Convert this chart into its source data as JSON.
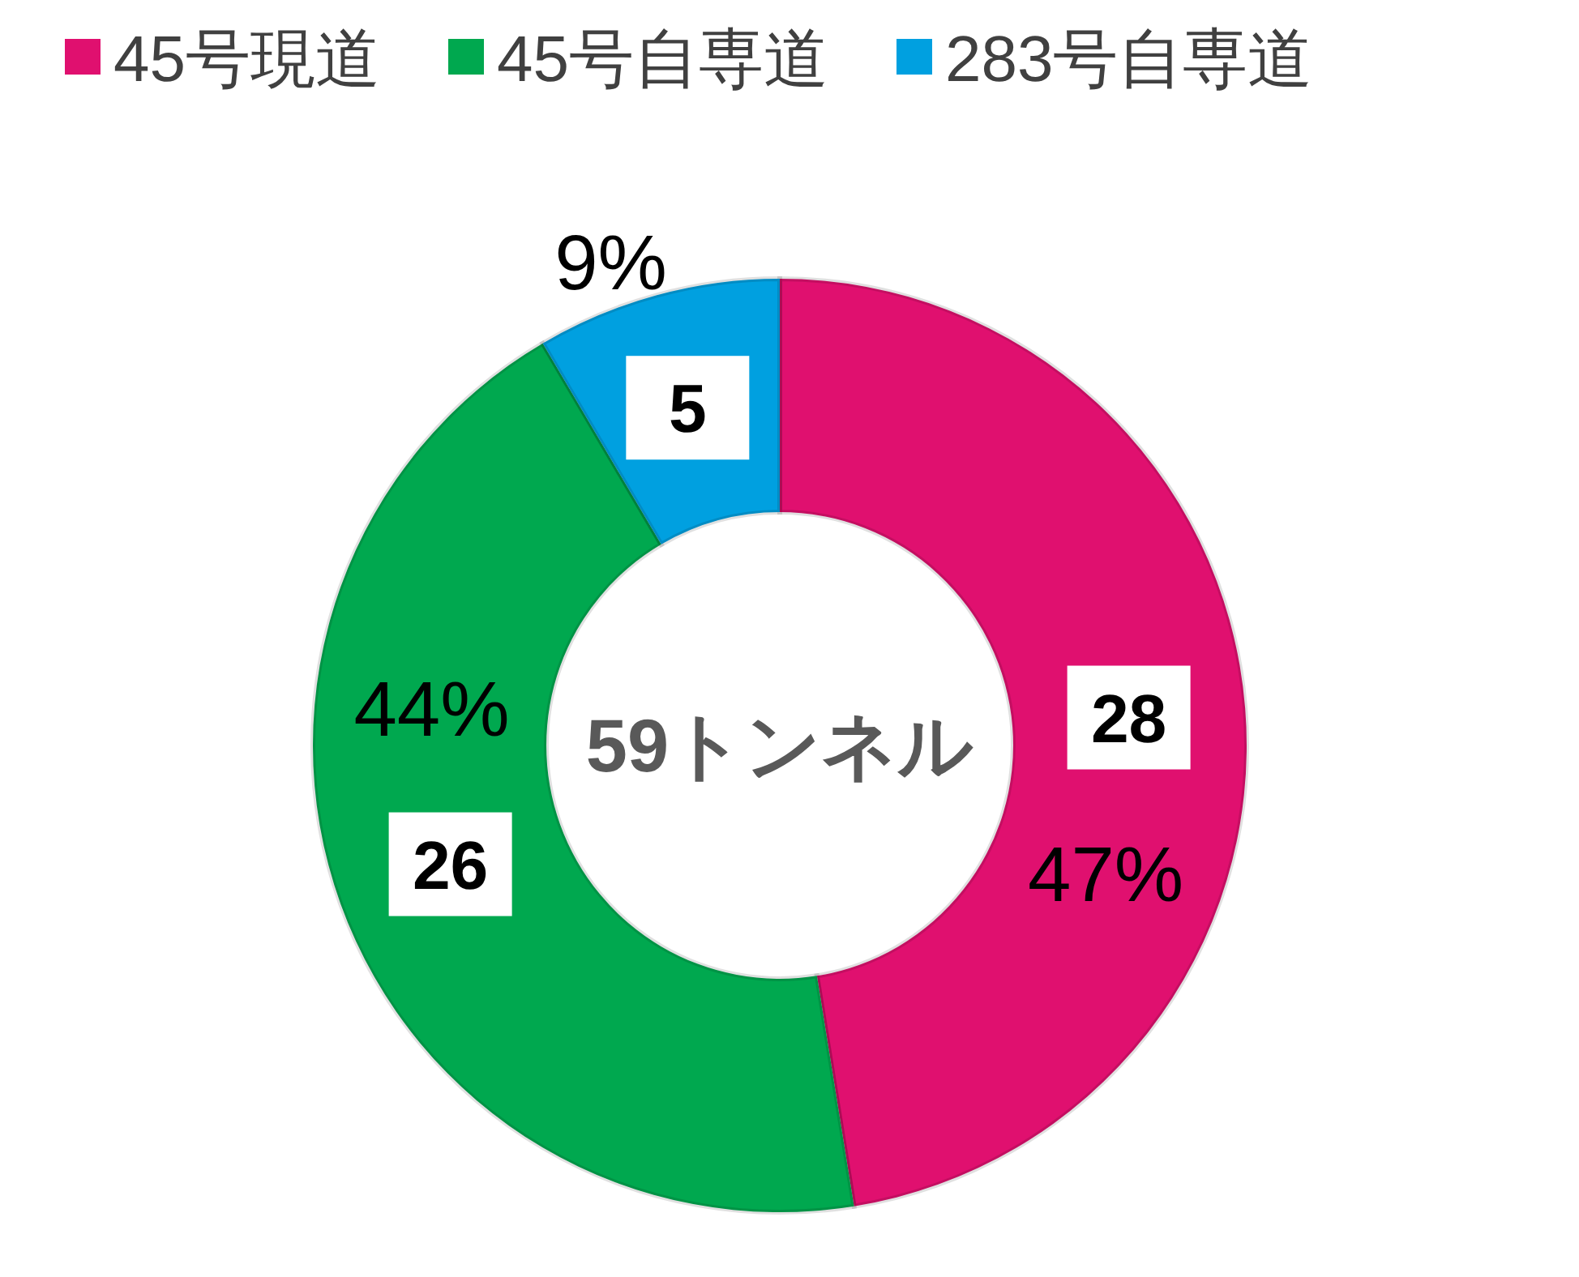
{
  "chart_data": {
    "type": "donut",
    "title": "59トンネル",
    "categories": [
      "45号現道",
      "45号自専道",
      "283号自専道"
    ],
    "values": [
      28,
      26,
      5
    ],
    "colors": [
      "#e0106f",
      "#00a84f",
      "#00a0e0"
    ],
    "data_labels": true,
    "annotations": [
      "47%",
      "44%",
      "9%"
    ],
    "legend": "top"
  }
}
